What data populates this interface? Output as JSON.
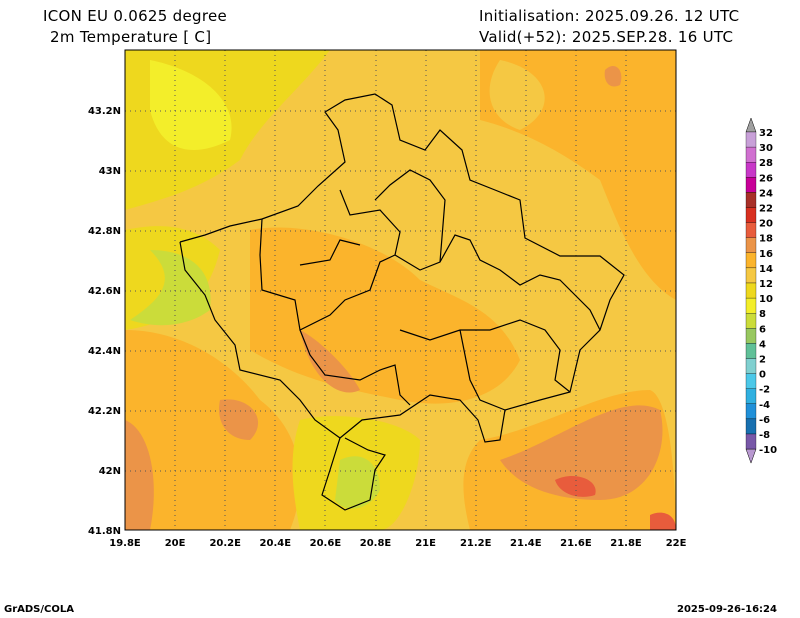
{
  "header": {
    "model": "ICON EU 0.0625 degree",
    "variable": "2m Temperature [ C]",
    "init": "Initialisation: 2025.09.26. 12 UTC",
    "valid": "Valid(+52): 2025.SEP.28. 16 UTC"
  },
  "axes": {
    "x_labels": [
      "19.8E",
      "20E",
      "20.2E",
      "20.4E",
      "20.6E",
      "20.8E",
      "21E",
      "21.2E",
      "21.4E",
      "21.6E",
      "21.8E",
      "22E"
    ],
    "y_labels": [
      "41.8N",
      "42N",
      "42.2N",
      "42.4N",
      "42.6N",
      "42.8N",
      "43N",
      "43.2N"
    ]
  },
  "colorbar": {
    "labels": [
      "32",
      "30",
      "28",
      "26",
      "24",
      "22",
      "20",
      "18",
      "16",
      "14",
      "12",
      "10",
      "8",
      "6",
      "4",
      "2",
      "0",
      "-2",
      "-4",
      "-6",
      "-8",
      "-10"
    ],
    "colors": [
      "#c8a0d8",
      "#d070d0",
      "#c838c8",
      "#c80098",
      "#a83028",
      "#d83020",
      "#e85c3c",
      "#eb9448",
      "#fbb42c",
      "#f5c843",
      "#eed81e",
      "#f3ee2a",
      "#cbdc3a",
      "#98c860",
      "#60c098",
      "#80d0d0",
      "#4cc8e8",
      "#30b0e0",
      "#2090d8",
      "#1870b0",
      "#7858a8"
    ],
    "over_color": "#a0a0a0",
    "under_color": "#b898d0"
  },
  "footer": {
    "left": "GrADS/COLA",
    "right": "2025-09-26-16:24"
  }
}
